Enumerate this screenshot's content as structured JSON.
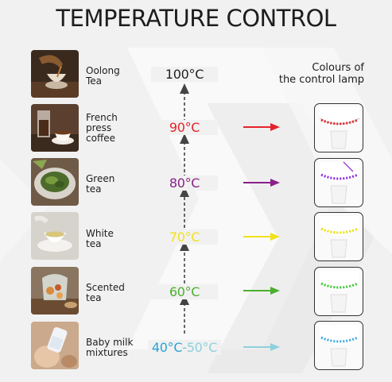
{
  "title": "TEMPERATURE CONTROL",
  "lamp_header": [
    "Colours of",
    "the control lamp"
  ],
  "rows": [
    {
      "label": [
        "Oolong",
        "Tea"
      ],
      "temp": "100°C",
      "temp_color": "#222222",
      "lamp_color": null,
      "photo": "oolong-tea-photo"
    },
    {
      "label": [
        "French",
        "press",
        "coffee"
      ],
      "temp": "90°C",
      "temp_color": "#e5232a",
      "lamp_color": "#e5232a",
      "photo": "french-press-coffee-photo"
    },
    {
      "label": [
        "Green",
        "tea"
      ],
      "temp": "80°C",
      "temp_color": "#8a1f8a",
      "lamp_color": "#8a2be2",
      "photo": "green-tea-photo"
    },
    {
      "label": [
        "White",
        "tea"
      ],
      "temp": "70°C",
      "temp_color": "#f2e11a",
      "lamp_color": "#e8e000",
      "photo": "white-tea-photo"
    },
    {
      "label": [
        "Scented",
        "tea"
      ],
      "temp": "60°C",
      "temp_color": "#4caf2d",
      "lamp_color": "#39c830",
      "photo": "scented-tea-photo"
    },
    {
      "label": [
        "Baby milk",
        "mixtures"
      ],
      "temp_parts": [
        "40°C",
        "-",
        "50°C"
      ],
      "temp_colors": [
        "#2aa3d6",
        "#6bc3d2",
        "#8fd0dd"
      ],
      "lamp_color": "#3aa8e0",
      "photo": "baby-milk-photo"
    }
  ]
}
